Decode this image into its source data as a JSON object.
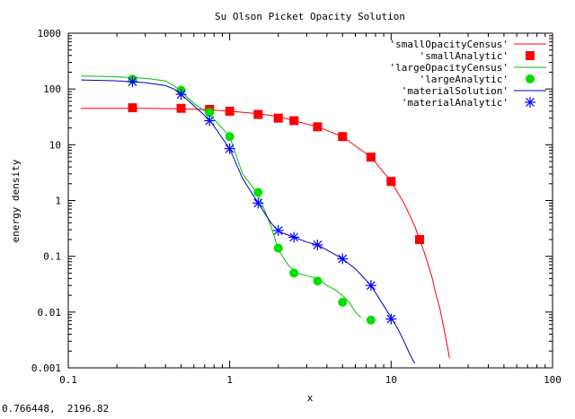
{
  "status_readout": "0.766448,  2196.82",
  "chart_data": {
    "type": "line",
    "title": "Su Olson Picket Opacity Solution",
    "xlabel": "x",
    "ylabel": "energy density",
    "xscale": "log",
    "yscale": "log",
    "xlim": [
      0.1,
      100
    ],
    "ylim": [
      0.001,
      1000
    ],
    "xticks": [
      0.1,
      1,
      10,
      100
    ],
    "xtick_labels": [
      "0.1",
      "1",
      "10",
      "100"
    ],
    "yticks": [
      0.001,
      0.01,
      0.1,
      1,
      10,
      100,
      1000
    ],
    "ytick_labels": [
      "0.001",
      "0.01",
      "0.1",
      "1",
      "10",
      "100",
      "1000"
    ],
    "grid": false,
    "legend_position": "top-right",
    "series": [
      {
        "name": "'smallOpacityCensus'",
        "style": "line",
        "color": "#ff0000",
        "x": [
          0.12,
          0.2,
          0.3,
          0.45,
          0.7,
          1.0,
          1.5,
          2.0,
          2.5,
          3.5,
          5.0,
          7.5,
          10.0,
          12.0,
          14.0,
          15.0,
          16.0,
          17.0,
          18.0,
          19.0,
          20.0,
          21.0,
          22.0,
          23.0
        ],
        "y": [
          45,
          45,
          45,
          44,
          43,
          40,
          36,
          32,
          27,
          21,
          14,
          6,
          2.2,
          0.9,
          0.35,
          0.2,
          0.12,
          0.07,
          0.04,
          0.02,
          0.012,
          0.006,
          0.003,
          0.0015
        ]
      },
      {
        "name": "'smallAnalytic'",
        "style": "marker",
        "marker": "square",
        "color": "#ff0000",
        "x": [
          0.25,
          0.5,
          0.75,
          1.0,
          1.5,
          2.0,
          2.5,
          3.5,
          5.0,
          7.5,
          10.0,
          15.0
        ],
        "y": [
          46,
          45,
          43,
          40,
          35,
          30,
          27,
          21,
          14,
          6,
          2.2,
          0.2
        ]
      },
      {
        "name": "'largeOpacityCensus'",
        "style": "line",
        "color": "#00c000",
        "x": [
          0.12,
          0.2,
          0.3,
          0.4,
          0.45,
          0.5,
          0.6,
          0.75,
          1.0,
          1.2,
          1.5,
          1.8,
          2.0,
          2.3,
          2.6,
          3.0,
          3.5,
          4.0,
          4.5,
          5.0,
          5.5,
          6.0,
          6.5
        ],
        "y": [
          170,
          165,
          155,
          140,
          115,
          90,
          55,
          35,
          14,
          3,
          1.3,
          0.35,
          0.13,
          0.07,
          0.05,
          0.045,
          0.04,
          0.03,
          0.025,
          0.02,
          0.015,
          0.01,
          0.008
        ]
      },
      {
        "name": "'largeAnalytic'",
        "style": "marker",
        "marker": "circle",
        "color": "#00e000",
        "x": [
          0.25,
          0.5,
          0.75,
          1.0,
          1.5,
          2.0,
          2.5,
          3.5,
          5.0,
          7.5
        ],
        "y": [
          150,
          95,
          38,
          14,
          1.4,
          0.14,
          0.05,
          0.036,
          0.015,
          0.0072
        ]
      },
      {
        "name": "'materialSolution'",
        "style": "line",
        "color": "#0000c0",
        "x": [
          0.12,
          0.2,
          0.3,
          0.4,
          0.45,
          0.5,
          0.6,
          0.75,
          1.0,
          1.2,
          1.5,
          1.8,
          2.0,
          2.5,
          3.0,
          3.5,
          4.0,
          5.0,
          6.0,
          7.5,
          9.0,
          10.0,
          11.0,
          12.0,
          13.0,
          14.0
        ],
        "y": [
          145,
          140,
          130,
          115,
          100,
          80,
          50,
          28,
          8.5,
          2.5,
          0.9,
          0.4,
          0.28,
          0.22,
          0.18,
          0.16,
          0.13,
          0.09,
          0.06,
          0.03,
          0.013,
          0.008,
          0.005,
          0.003,
          0.0018,
          0.0012
        ]
      },
      {
        "name": "'materialAnalytic'",
        "style": "marker",
        "marker": "asterisk",
        "color": "#0000ff",
        "x": [
          0.25,
          0.5,
          0.75,
          1.0,
          1.5,
          2.0,
          2.5,
          3.5,
          5.0,
          7.5,
          10.0
        ],
        "y": [
          135,
          80,
          27,
          8.5,
          0.9,
          0.29,
          0.22,
          0.16,
          0.09,
          0.03,
          0.0075
        ]
      }
    ]
  }
}
